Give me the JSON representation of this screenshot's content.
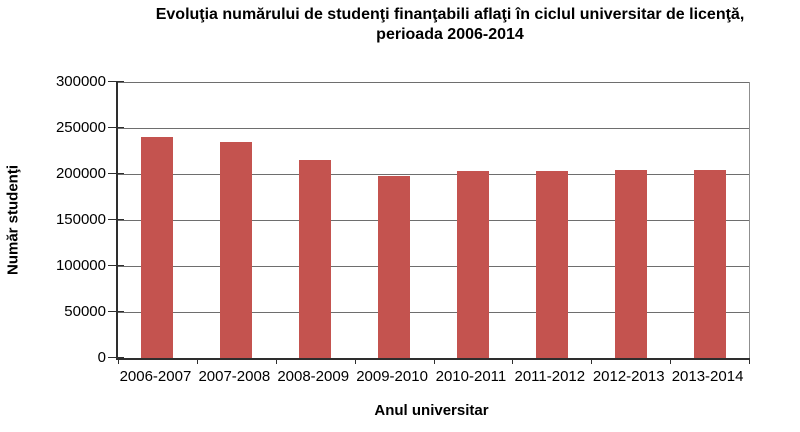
{
  "title": {
    "line1": "Evoluţia numărului de studenţi finanţabili aflaţi în ciclul universitar de licenţă,",
    "line2": "perioada 2006-2014"
  },
  "chart_data": {
    "type": "bar",
    "title": "Evoluţia numărului de studenţi finanţabili aflaţi în ciclul universitar de licenţă, perioada 2006-2014",
    "categories": [
      "2006-2007",
      "2007-2008",
      "2008-2009",
      "2009-2010",
      "2010-2011",
      "2011-2012",
      "2012-2013",
      "2013-2014"
    ],
    "values": [
      240000,
      235000,
      215000,
      198000,
      203000,
      203000,
      204000,
      204000
    ],
    "xlabel": "Anul universitar",
    "ylabel": "Număr studenţi",
    "ylim": [
      0,
      300000
    ],
    "yticks": [
      0,
      50000,
      100000,
      150000,
      200000,
      250000,
      300000
    ],
    "grid": true,
    "legend": false
  },
  "colors": {
    "bar": "#c4534f",
    "gridline": "#6e6e6e",
    "axis": "#2e2e2e",
    "plot_border": "#8f8f8f",
    "background": "#ffffff",
    "text": "#000000"
  }
}
